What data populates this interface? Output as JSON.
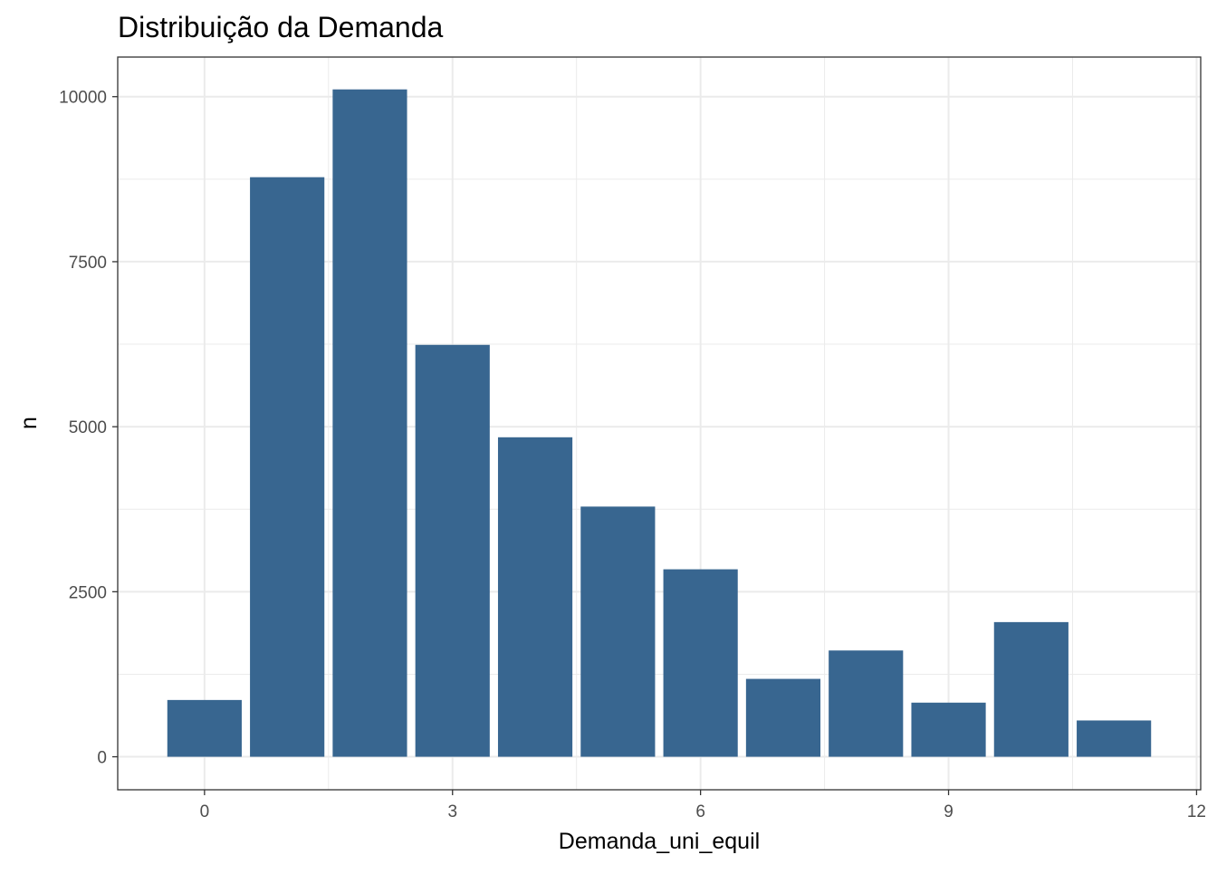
{
  "chart_data": {
    "type": "bar",
    "title": "Distribuição da Demanda",
    "xlabel": "Demanda_uni_equil",
    "ylabel": "n",
    "x": [
      0,
      1,
      2,
      3,
      4,
      5,
      6,
      7,
      8,
      9,
      10,
      11
    ],
    "values": [
      860,
      8780,
      10110,
      6240,
      4840,
      3790,
      2840,
      1180,
      1610,
      820,
      2040,
      550
    ],
    "xlim": [
      -1.05,
      12.05
    ],
    "ylim": [
      -500,
      10600
    ],
    "x_ticks": [
      0,
      3,
      6,
      9,
      12
    ],
    "x_tick_labels": [
      "0",
      "3",
      "6",
      "9",
      "12"
    ],
    "y_ticks": [
      0,
      2500,
      5000,
      7500,
      10000
    ],
    "y_tick_labels": [
      "0",
      "2500",
      "5000",
      "7500",
      "10000"
    ],
    "grid": true,
    "bar_color": "#386690",
    "panel_border_color": "#333333",
    "grid_color": "#ebebeb"
  }
}
